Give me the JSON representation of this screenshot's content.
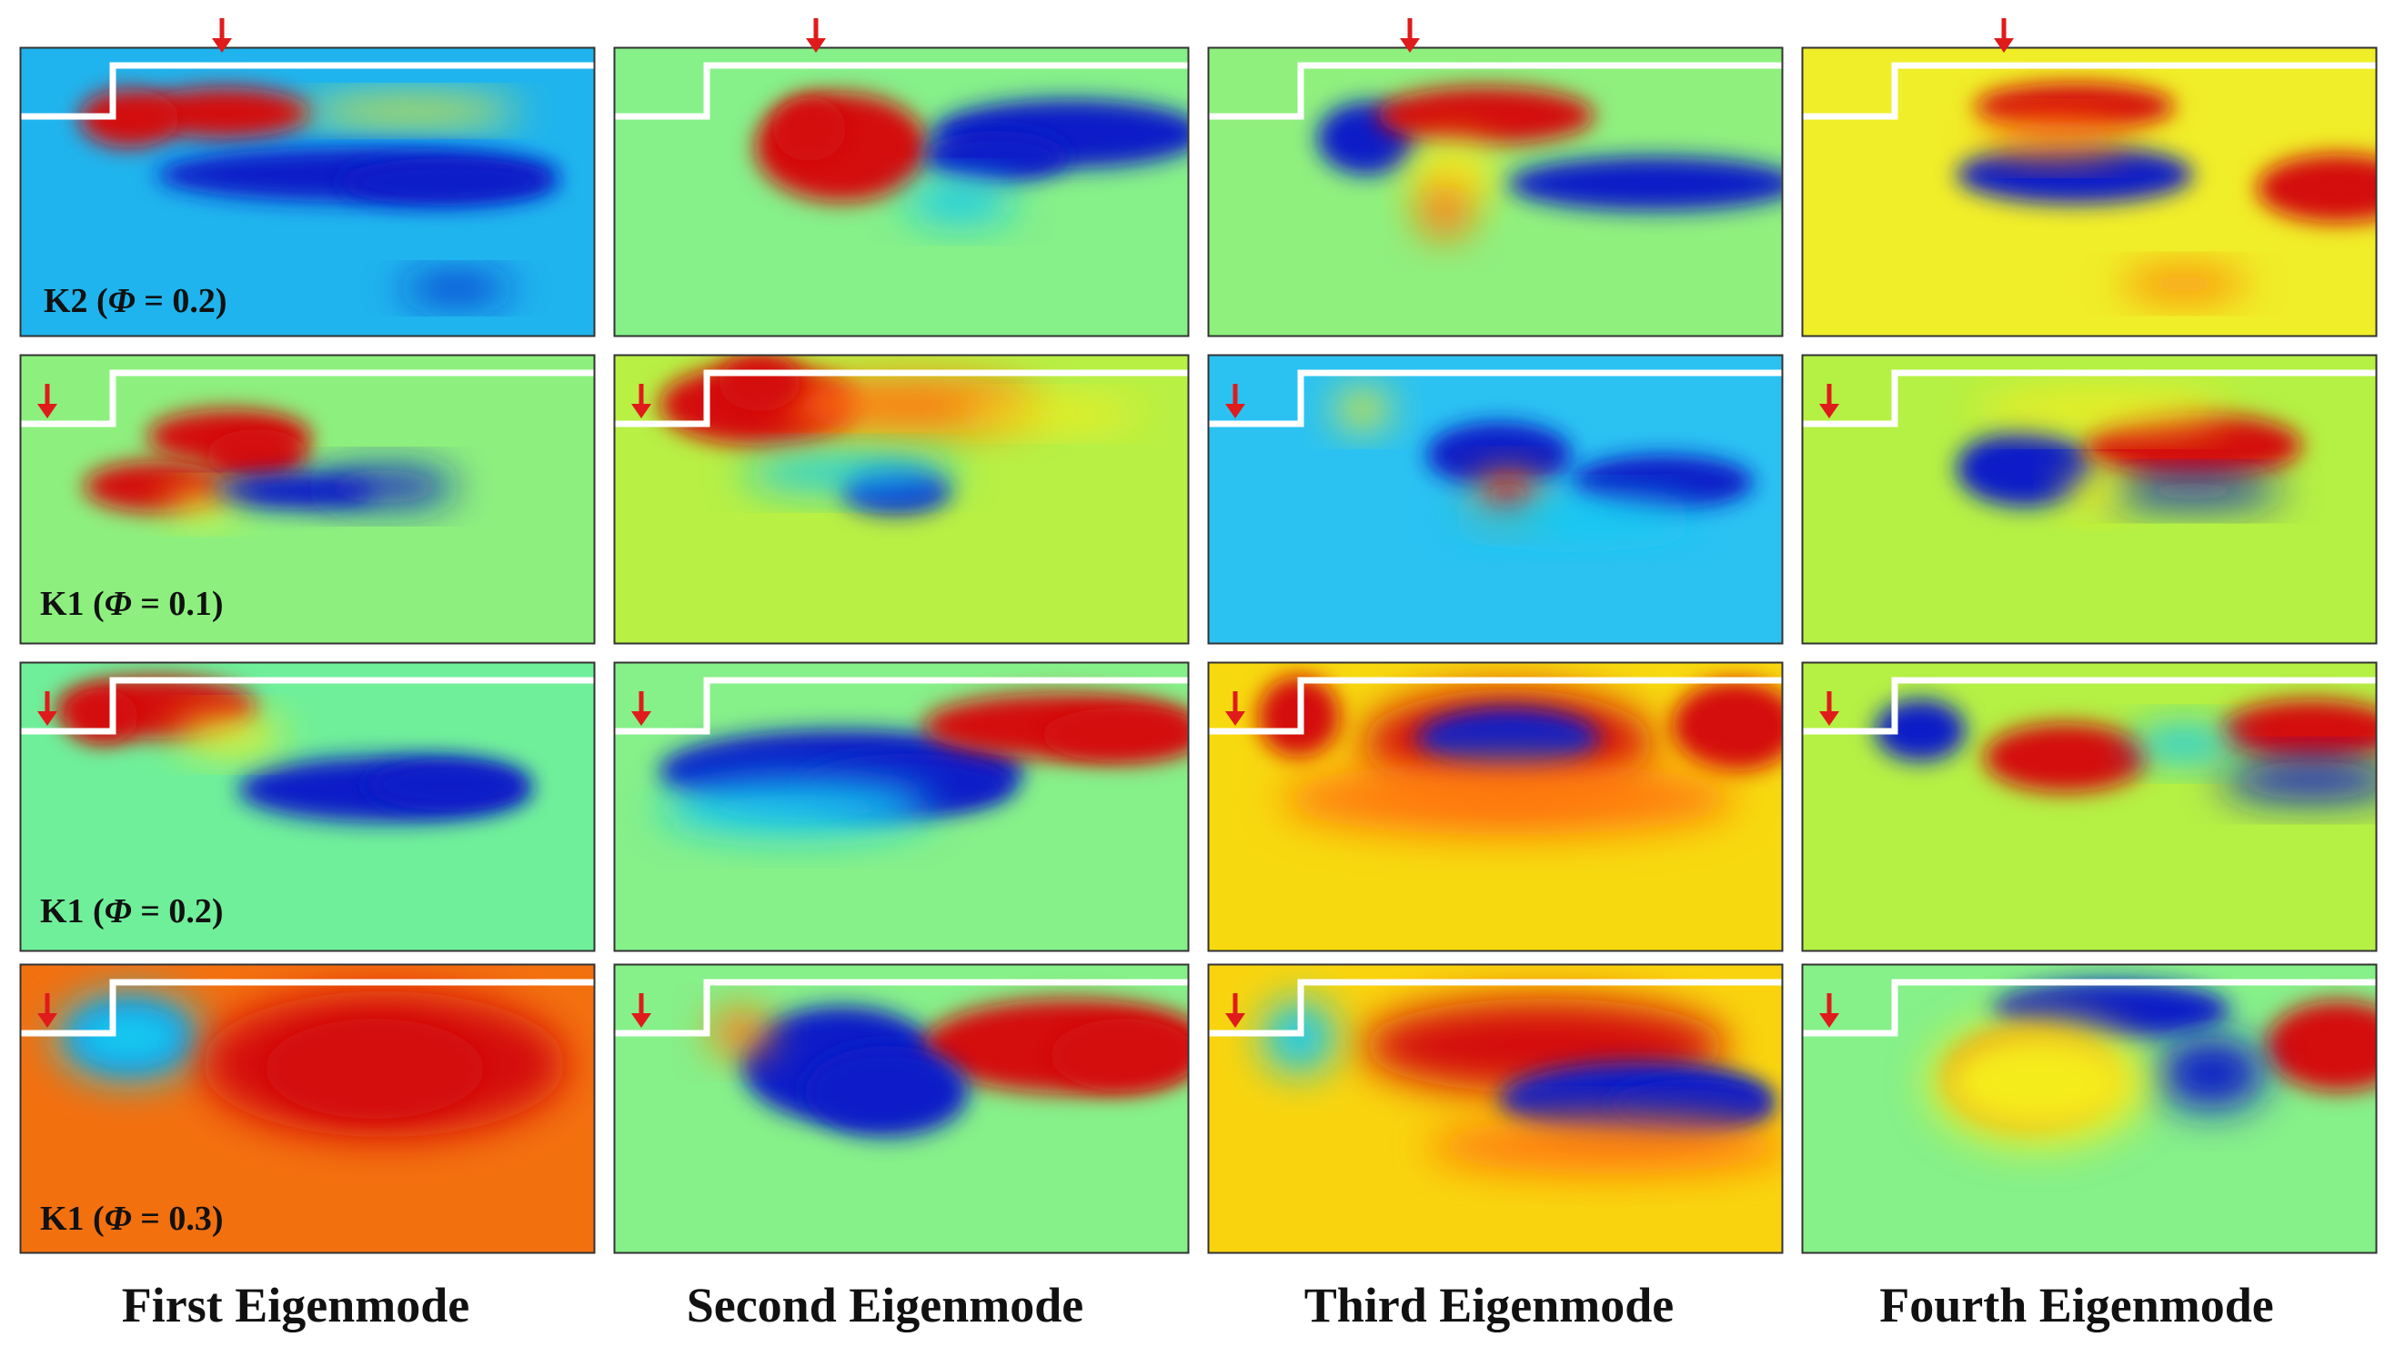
{
  "figure": {
    "columns": [
      "First Eigenmode",
      "Second Eigenmode",
      "Third Eigenmode",
      "Fourth Eigenmode"
    ],
    "rows": [
      {
        "prefix": "K2 (",
        "symbol": "Φ",
        "suffix": " = 0.2)"
      },
      {
        "prefix": "K1 (",
        "symbol": "Φ",
        "suffix": " = 0.1)"
      },
      {
        "prefix": "K1 (",
        "symbol": "Φ",
        "suffix": " = 0.2)"
      },
      {
        "prefix": "K1 (",
        "symbol": "Φ",
        "suffix": " = 0.3)"
      }
    ],
    "colors": {
      "neutral_green": "#86f089",
      "cyan": "#14c9f0",
      "blue": "#0a1ec8",
      "yellow": "#f5ec1e",
      "orange": "#ff7a10",
      "red": "#d40c0c",
      "step_line": "#ffffff",
      "arrow": "#e01b1b"
    },
    "panel_backgrounds": [
      [
        "#1fb4ee",
        "#86f089",
        "#8ff07e",
        "#f0ee28"
      ],
      [
        "#8df07e",
        "#b8f044",
        "#2bc2f2",
        "#b5f044"
      ],
      [
        "#6fef9a",
        "#86f089",
        "#f7d90f",
        "#b5f044"
      ],
      [
        "#f3700f",
        "#86f089",
        "#f9d40e",
        "#86f089"
      ]
    ],
    "arrow_position": [
      "top",
      "side",
      "side",
      "side"
    ]
  }
}
